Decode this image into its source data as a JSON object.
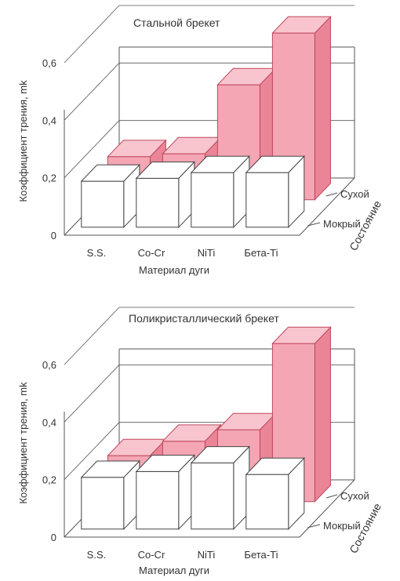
{
  "colors": {
    "dry_front": "#f4a6b4",
    "dry_top": "#f8c5ce",
    "dry_side": "#e98597",
    "dry_stroke": "#c0465d",
    "wet_front": "#ffffff",
    "wet_top": "#ffffff",
    "wet_side": "#ffffff",
    "wet_stroke": "#444444",
    "axis": "#555555"
  },
  "chart_data": [
    {
      "type": "bar",
      "title": "Стальной брекет",
      "xlabel": "Материал дуги",
      "ylabel": "Коэффициент трения, mk",
      "zlabel": "Состояние",
      "categories": [
        "S.S.",
        "Co-Cr",
        "NiTi",
        "Бета-Ti"
      ],
      "y_ticks": [
        "0",
        "0,2",
        "0,4",
        "0,6"
      ],
      "ylim": [
        0,
        0.6
      ],
      "depth_labels": [
        "Мокрый",
        "Сухой"
      ],
      "series": [
        {
          "name": "Мокрый",
          "values": [
            0.16,
            0.17,
            0.19,
            0.19
          ]
        },
        {
          "name": "Сухой",
          "values": [
            0.15,
            0.16,
            0.4,
            0.58
          ]
        }
      ]
    },
    {
      "type": "bar",
      "title": "Поликристаллический брекет",
      "xlabel": "Материал дуги",
      "ylabel": "Коэффициент трения, mk",
      "zlabel": "Состояние",
      "categories": [
        "S.S.",
        "Co-Cr",
        "NiTi",
        "Бета-Ti"
      ],
      "y_ticks": [
        "0",
        "0,2",
        "0,4",
        "0,6"
      ],
      "ylim": [
        0,
        0.6
      ],
      "depth_labels": [
        "Мокрый",
        "Сухой"
      ],
      "series": [
        {
          "name": "Мокрый",
          "values": [
            0.18,
            0.2,
            0.23,
            0.19
          ]
        },
        {
          "name": "Сухой",
          "values": [
            0.16,
            0.21,
            0.25,
            0.55
          ]
        }
      ]
    }
  ]
}
